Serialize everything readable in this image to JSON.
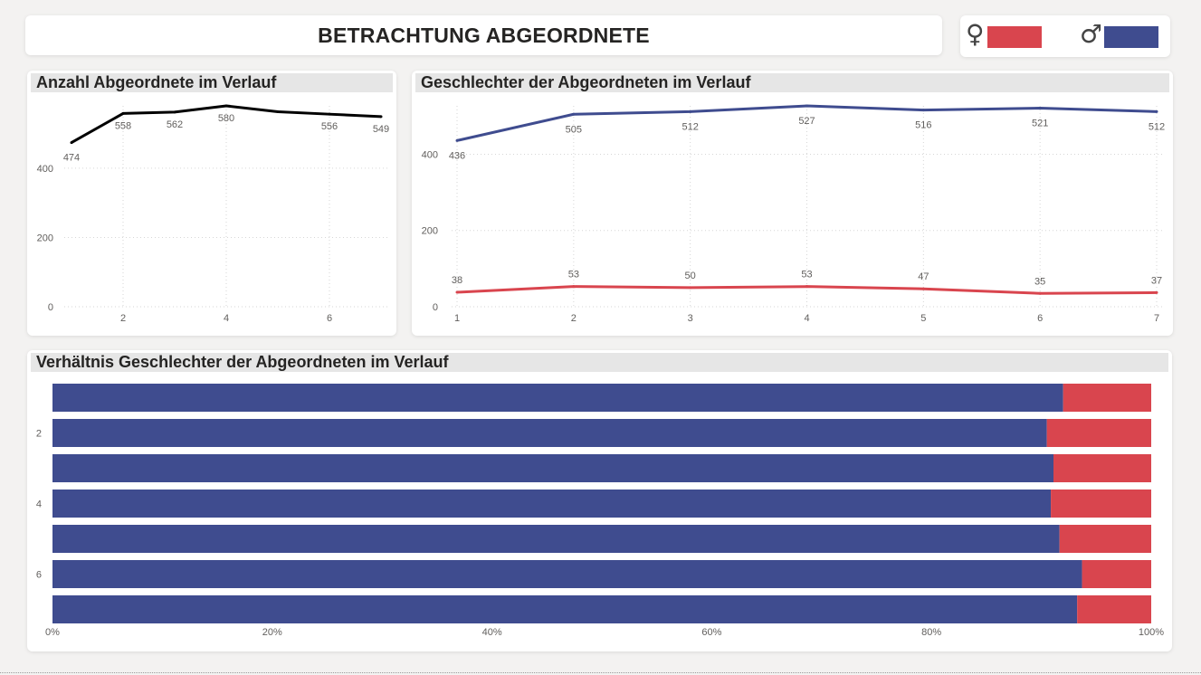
{
  "header": {
    "title": "BETRACHTUNG ABGEORDNETE"
  },
  "legend": {
    "female_symbol": "♀",
    "male_symbol": "♂",
    "female_color": "#d9454e",
    "male_color": "#3f4c8f"
  },
  "chart_data": [
    {
      "type": "line",
      "title": "Anzahl Abgeordnete im Verlauf",
      "x": [
        1,
        2,
        3,
        4,
        5,
        6,
        7
      ],
      "xticks": [
        "2",
        "4",
        "6"
      ],
      "yticks": [
        "0",
        "200",
        "400"
      ],
      "ylim": [
        0,
        580
      ],
      "series": [
        {
          "values": [
            474,
            558,
            562,
            580,
            563,
            556,
            549
          ],
          "labels": [
            "474",
            "558",
            "562",
            "580",
            "",
            "556",
            "549"
          ],
          "color": "#000000"
        }
      ],
      "grid": true
    },
    {
      "type": "line",
      "title": "Geschlechter der Abgeordneten im Verlauf",
      "x": [
        1,
        2,
        3,
        4,
        5,
        6,
        7
      ],
      "xticks": [
        "1",
        "2",
        "3",
        "4",
        "5",
        "6",
        "7"
      ],
      "yticks": [
        "0",
        "200",
        "400"
      ],
      "ylim": [
        0,
        527
      ],
      "series": [
        {
          "values": [
            436,
            505,
            512,
            527,
            516,
            521,
            512
          ],
          "labels": [
            "436",
            "505",
            "512",
            "527",
            "516",
            "521",
            "512"
          ],
          "color": "#3f4c8f"
        },
        {
          "values": [
            38,
            53,
            50,
            53,
            47,
            35,
            37
          ],
          "labels": [
            "38",
            "53",
            "50",
            "53",
            "47",
            "35",
            "37"
          ],
          "color": "#d9454e"
        }
      ],
      "grid": true
    },
    {
      "type": "bar",
      "orientation": "horizontal",
      "stacked": "100%",
      "title": "Verhältnis Geschlechter der Abgeordneten im Verlauf",
      "categories": [
        1,
        2,
        3,
        4,
        5,
        6,
        7
      ],
      "yticks": [
        "2",
        "4",
        "6"
      ],
      "xticks": [
        "0%",
        "20%",
        "40%",
        "60%",
        "80%",
        "100%"
      ],
      "series": [
        {
          "values": [
            436,
            505,
            512,
            527,
            516,
            521,
            512
          ],
          "color": "#3f4c8f"
        },
        {
          "values": [
            38,
            53,
            50,
            53,
            47,
            35,
            37
          ],
          "color": "#d9454e"
        }
      ]
    }
  ]
}
